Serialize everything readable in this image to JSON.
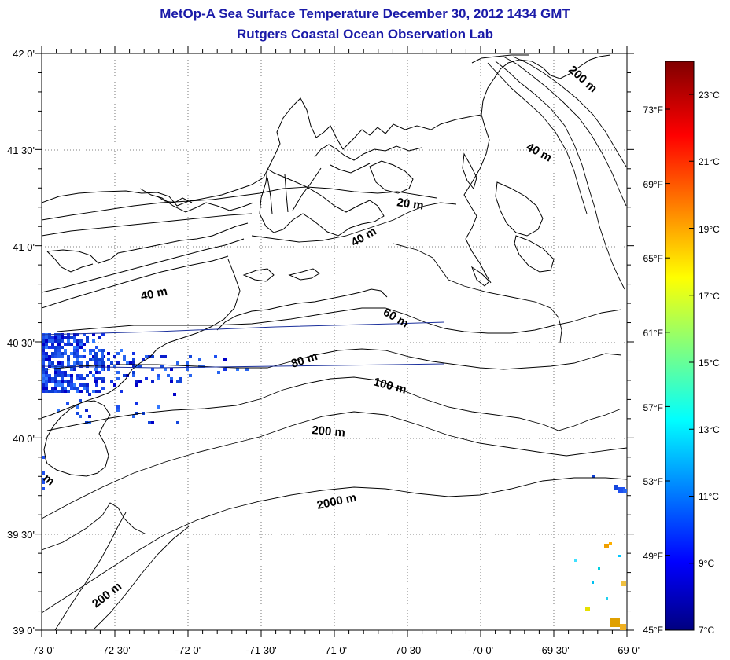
{
  "title": {
    "line1": "MetOp-A Sea Surface Temperature December 30, 2012 1434 GMT",
    "line2": "Rutgers Coastal Ocean Observation Lab"
  },
  "axes": {
    "lat_labels": [
      "42 0'",
      "41 30'",
      "41 0'",
      "40 30'",
      "40 0'",
      "39 30'",
      "39 0'"
    ],
    "lon_labels": [
      "-73 0'",
      "-72 30'",
      "-72 0'",
      "-71 30'",
      "-71 0'",
      "-70 30'",
      "-70 0'",
      "-69 30'",
      "-69 0'"
    ]
  },
  "contour_labels": {
    "c20": "20 m",
    "c40a": "40 m",
    "c40b": "40 m",
    "c40c": "40 m",
    "c60": "60 m",
    "c80": "80 m",
    "c100": "100 m",
    "c200a": "200 m",
    "c200b": "200 m",
    "c200c": "200 m",
    "c2000": "2000 m",
    "cedge": "m"
  },
  "colorbar": {
    "fahrenheit_labels": [
      "73°F",
      "69°F",
      "65°F",
      "61°F",
      "57°F",
      "53°F",
      "49°F",
      "45°F"
    ],
    "celsius_labels": [
      "23°C",
      "21°C",
      "19°C",
      "17°C",
      "15°C",
      "13°C",
      "11°C",
      "9°C",
      "7°C"
    ],
    "range_celsius": [
      7,
      24.5
    ]
  },
  "colors": {
    "title": "#1a1aa8",
    "coast": "#000000",
    "track": "#1a2f9c"
  }
}
